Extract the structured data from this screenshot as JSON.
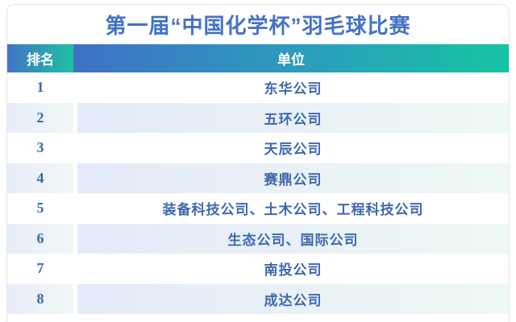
{
  "title": "第一届“中国化学杯”羽毛球比赛",
  "table": {
    "columns": {
      "rank_label": "排名",
      "unit_label": "单位"
    },
    "rows": [
      {
        "rank": "1",
        "unit": "东华公司"
      },
      {
        "rank": "2",
        "unit": "五环公司"
      },
      {
        "rank": "3",
        "unit": "天辰公司"
      },
      {
        "rank": "4",
        "unit": "赛鼎公司"
      },
      {
        "rank": "5",
        "unit": "装备科技公司、土木公司、工程科技公司"
      },
      {
        "rank": "6",
        "unit": "生态公司、国际公司"
      },
      {
        "rank": "7",
        "unit": "南投公司"
      },
      {
        "rank": "8",
        "unit": "成达公司"
      }
    ]
  },
  "colors": {
    "title_text": "#4472c4",
    "header_gradient_start": "#3f71c5",
    "header_gradient_end": "#16c4a2",
    "header_text": "#ffffff",
    "body_text": "#3e68b0",
    "stripe_gradient_start": "#e4eaf8",
    "stripe_gradient_end": "#eef8f4",
    "card_border": "#e4e5e9"
  }
}
